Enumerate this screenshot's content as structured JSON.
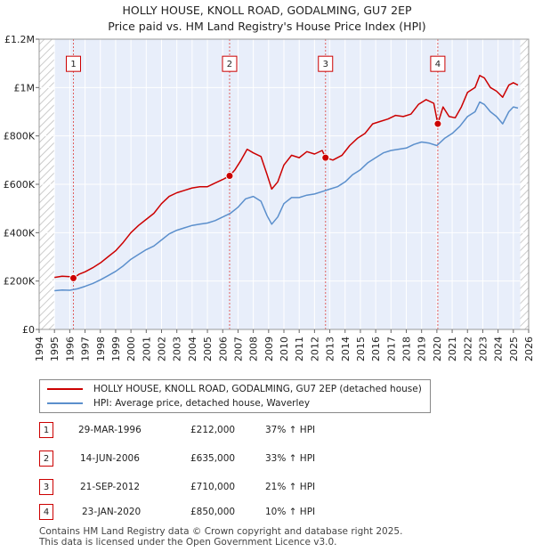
{
  "chart_data": {
    "type": "line",
    "title": "HOLLY HOUSE, KNOLL ROAD, GODALMING, GU7 2EP",
    "subtitle": "Price paid vs. HM Land Registry's House Price Index (HPI)",
    "xlim": [
      1994,
      2026
    ],
    "ylim": [
      0,
      1200000
    ],
    "x_ticks": [
      "1994",
      "1995",
      "1996",
      "1997",
      "1998",
      "1999",
      "2000",
      "2001",
      "2002",
      "2003",
      "2004",
      "2005",
      "2006",
      "2007",
      "2008",
      "2009",
      "2010",
      "2011",
      "2012",
      "2013",
      "2014",
      "2015",
      "2016",
      "2017",
      "2018",
      "2019",
      "2020",
      "2021",
      "2022",
      "2023",
      "2024",
      "2025",
      "2026"
    ],
    "y_ticks": [
      {
        "value": 0,
        "label": "£0"
      },
      {
        "value": 200000,
        "label": "£200K"
      },
      {
        "value": 400000,
        "label": "£400K"
      },
      {
        "value": 600000,
        "label": "£600K"
      },
      {
        "value": 800000,
        "label": "£800K"
      },
      {
        "value": 1000000,
        "label": "£1M"
      },
      {
        "value": 1200000,
        "label": "£1.2M"
      }
    ],
    "data_start": 1995.0,
    "data_end": 2025.45,
    "series": [
      {
        "name": "HOLLY HOUSE, KNOLL ROAD, GODALMING, GU7 2EP (detached house)",
        "color": "#cc0000",
        "points": [
          [
            1995.0,
            215000
          ],
          [
            1995.5,
            220000
          ],
          [
            1996.0,
            218000
          ],
          [
            1996.24,
            212000
          ],
          [
            1996.6,
            228000
          ],
          [
            1997.0,
            238000
          ],
          [
            1997.5,
            255000
          ],
          [
            1998.0,
            275000
          ],
          [
            1998.5,
            300000
          ],
          [
            1999.0,
            325000
          ],
          [
            1999.5,
            360000
          ],
          [
            2000.0,
            400000
          ],
          [
            2000.5,
            430000
          ],
          [
            2001.0,
            455000
          ],
          [
            2001.5,
            480000
          ],
          [
            2002.0,
            520000
          ],
          [
            2002.5,
            550000
          ],
          [
            2003.0,
            565000
          ],
          [
            2003.5,
            575000
          ],
          [
            2004.0,
            585000
          ],
          [
            2004.5,
            590000
          ],
          [
            2005.0,
            590000
          ],
          [
            2005.5,
            605000
          ],
          [
            2006.0,
            620000
          ],
          [
            2006.45,
            635000
          ],
          [
            2006.8,
            660000
          ],
          [
            2007.2,
            700000
          ],
          [
            2007.6,
            745000
          ],
          [
            2008.0,
            730000
          ],
          [
            2008.5,
            715000
          ],
          [
            2008.9,
            640000
          ],
          [
            2009.2,
            580000
          ],
          [
            2009.6,
            610000
          ],
          [
            2010.0,
            680000
          ],
          [
            2010.5,
            720000
          ],
          [
            2011.0,
            710000
          ],
          [
            2011.5,
            735000
          ],
          [
            2012.0,
            725000
          ],
          [
            2012.5,
            740000
          ],
          [
            2012.72,
            710000
          ],
          [
            2013.2,
            700000
          ],
          [
            2013.8,
            720000
          ],
          [
            2014.3,
            760000
          ],
          [
            2014.8,
            790000
          ],
          [
            2015.3,
            810000
          ],
          [
            2015.8,
            850000
          ],
          [
            2016.3,
            860000
          ],
          [
            2016.8,
            870000
          ],
          [
            2017.3,
            885000
          ],
          [
            2017.8,
            880000
          ],
          [
            2018.3,
            890000
          ],
          [
            2018.8,
            930000
          ],
          [
            2019.3,
            950000
          ],
          [
            2019.8,
            935000
          ],
          [
            2020.06,
            850000
          ],
          [
            2020.4,
            920000
          ],
          [
            2020.8,
            880000
          ],
          [
            2021.2,
            875000
          ],
          [
            2021.6,
            920000
          ],
          [
            2022.0,
            980000
          ],
          [
            2022.5,
            1000000
          ],
          [
            2022.8,
            1050000
          ],
          [
            2023.1,
            1040000
          ],
          [
            2023.5,
            1000000
          ],
          [
            2023.9,
            985000
          ],
          [
            2024.3,
            960000
          ],
          [
            2024.7,
            1010000
          ],
          [
            2025.0,
            1020000
          ],
          [
            2025.3,
            1010000
          ]
        ]
      },
      {
        "name": "HPI: Average price, detached house, Waverley",
        "color": "#5b8fcc",
        "points": [
          [
            1995.0,
            160000
          ],
          [
            1995.5,
            163000
          ],
          [
            1996.0,
            162000
          ],
          [
            1996.5,
            168000
          ],
          [
            1997.0,
            178000
          ],
          [
            1997.5,
            190000
          ],
          [
            1998.0,
            205000
          ],
          [
            1998.5,
            222000
          ],
          [
            1999.0,
            240000
          ],
          [
            1999.5,
            263000
          ],
          [
            2000.0,
            290000
          ],
          [
            2000.5,
            310000
          ],
          [
            2001.0,
            330000
          ],
          [
            2001.5,
            345000
          ],
          [
            2002.0,
            370000
          ],
          [
            2002.5,
            395000
          ],
          [
            2003.0,
            410000
          ],
          [
            2003.5,
            420000
          ],
          [
            2004.0,
            430000
          ],
          [
            2004.5,
            435000
          ],
          [
            2005.0,
            440000
          ],
          [
            2005.5,
            450000
          ],
          [
            2006.0,
            465000
          ],
          [
            2006.5,
            480000
          ],
          [
            2007.0,
            505000
          ],
          [
            2007.5,
            540000
          ],
          [
            2008.0,
            550000
          ],
          [
            2008.5,
            530000
          ],
          [
            2008.9,
            470000
          ],
          [
            2009.2,
            435000
          ],
          [
            2009.6,
            465000
          ],
          [
            2010.0,
            520000
          ],
          [
            2010.5,
            545000
          ],
          [
            2011.0,
            545000
          ],
          [
            2011.5,
            555000
          ],
          [
            2012.0,
            560000
          ],
          [
            2012.5,
            570000
          ],
          [
            2013.0,
            580000
          ],
          [
            2013.5,
            590000
          ],
          [
            2014.0,
            610000
          ],
          [
            2014.5,
            640000
          ],
          [
            2015.0,
            660000
          ],
          [
            2015.5,
            690000
          ],
          [
            2016.0,
            710000
          ],
          [
            2016.5,
            730000
          ],
          [
            2017.0,
            740000
          ],
          [
            2017.5,
            745000
          ],
          [
            2018.0,
            750000
          ],
          [
            2018.5,
            765000
          ],
          [
            2019.0,
            775000
          ],
          [
            2019.5,
            770000
          ],
          [
            2020.0,
            760000
          ],
          [
            2020.5,
            790000
          ],
          [
            2021.0,
            810000
          ],
          [
            2021.5,
            840000
          ],
          [
            2022.0,
            880000
          ],
          [
            2022.5,
            900000
          ],
          [
            2022.8,
            940000
          ],
          [
            2023.1,
            930000
          ],
          [
            2023.5,
            900000
          ],
          [
            2023.9,
            880000
          ],
          [
            2024.3,
            850000
          ],
          [
            2024.7,
            900000
          ],
          [
            2025.0,
            920000
          ],
          [
            2025.3,
            915000
          ]
        ]
      }
    ],
    "sales": [
      {
        "label": "1",
        "x": 1996.24,
        "price": 212000
      },
      {
        "label": "2",
        "x": 2006.45,
        "price": 635000
      },
      {
        "label": "3",
        "x": 2012.72,
        "price": 710000
      },
      {
        "label": "4",
        "x": 2020.06,
        "price": 850000
      }
    ],
    "marker_label_value": 1100000,
    "grid": true
  },
  "legend": {
    "property_label": "HOLLY HOUSE, KNOLL ROAD, GODALMING, GU7 2EP (detached house)",
    "hpi_label": "HPI: Average price, detached house, Waverley"
  },
  "transactions": [
    {
      "num": "1",
      "date": "29-MAR-1996",
      "price": "£212,000",
      "hpi": "37% ↑ HPI"
    },
    {
      "num": "2",
      "date": "14-JUN-2006",
      "price": "£635,000",
      "hpi": "33% ↑ HPI"
    },
    {
      "num": "3",
      "date": "21-SEP-2012",
      "price": "£710,000",
      "hpi": "21% ↑ HPI"
    },
    {
      "num": "4",
      "date": "23-JAN-2020",
      "price": "£850,000",
      "hpi": "10% ↑ HPI"
    }
  ],
  "footer": {
    "line1": "Contains HM Land Registry data © Crown copyright and database right 2025.",
    "line2": "This data is licensed under the Open Government Licence v3.0."
  },
  "colors": {
    "accent": "#cc0000",
    "hpi": "#5b8fcc",
    "plot_bg": "#e8eefa",
    "grid": "#ffffff",
    "hatch": "#cccccc"
  }
}
